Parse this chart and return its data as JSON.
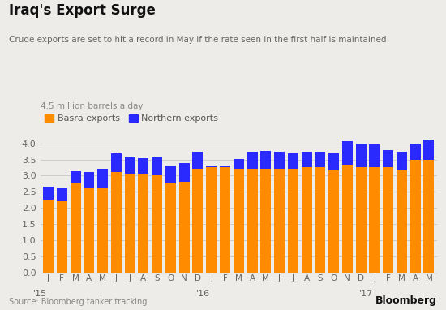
{
  "title": "Iraq's Export Surge",
  "subtitle": "Crude exports are set to hit a record in May if the rate seen in the first half is maintained",
  "ylabel": "4.5 million barrels a day",
  "source": "Source: Bloomberg tanker tracking",
  "basra_color": "#FF8C00",
  "northern_color": "#2A2AFF",
  "background_color": "#EDECE8",
  "grid_color": "#CCCCCC",
  "months": [
    "J",
    "F",
    "M",
    "A",
    "M",
    "J",
    "J",
    "A",
    "S",
    "O",
    "N",
    "D",
    "J",
    "F",
    "M",
    "A",
    "M",
    "J",
    "J",
    "A",
    "S",
    "O",
    "N",
    "D",
    "J",
    "F",
    "M",
    "A",
    "M"
  ],
  "year_labels": [
    [
      "'15",
      0
    ],
    [
      "'16",
      12
    ],
    [
      "'17",
      24
    ]
  ],
  "basra": [
    2.25,
    2.2,
    2.75,
    2.6,
    2.6,
    3.1,
    3.05,
    3.05,
    3.0,
    2.75,
    2.8,
    3.2,
    3.25,
    3.25,
    3.2,
    3.2,
    3.2,
    3.2,
    3.2,
    3.25,
    3.25,
    3.15,
    3.35,
    3.25,
    3.25,
    3.25,
    3.15,
    3.5,
    3.5
  ],
  "northern": [
    0.4,
    0.4,
    0.38,
    0.5,
    0.6,
    0.6,
    0.55,
    0.5,
    0.6,
    0.55,
    0.6,
    0.55,
    0.05,
    0.05,
    0.32,
    0.55,
    0.56,
    0.55,
    0.5,
    0.5,
    0.5,
    0.55,
    0.72,
    0.75,
    0.72,
    0.55,
    0.6,
    0.5,
    0.62
  ],
  "ylim": [
    0,
    4.5
  ],
  "yticks": [
    0.0,
    0.5,
    1.0,
    1.5,
    2.0,
    2.5,
    3.0,
    3.5,
    4.0
  ],
  "legend_basra": "Basra exports",
  "legend_northern": "Northern exports"
}
